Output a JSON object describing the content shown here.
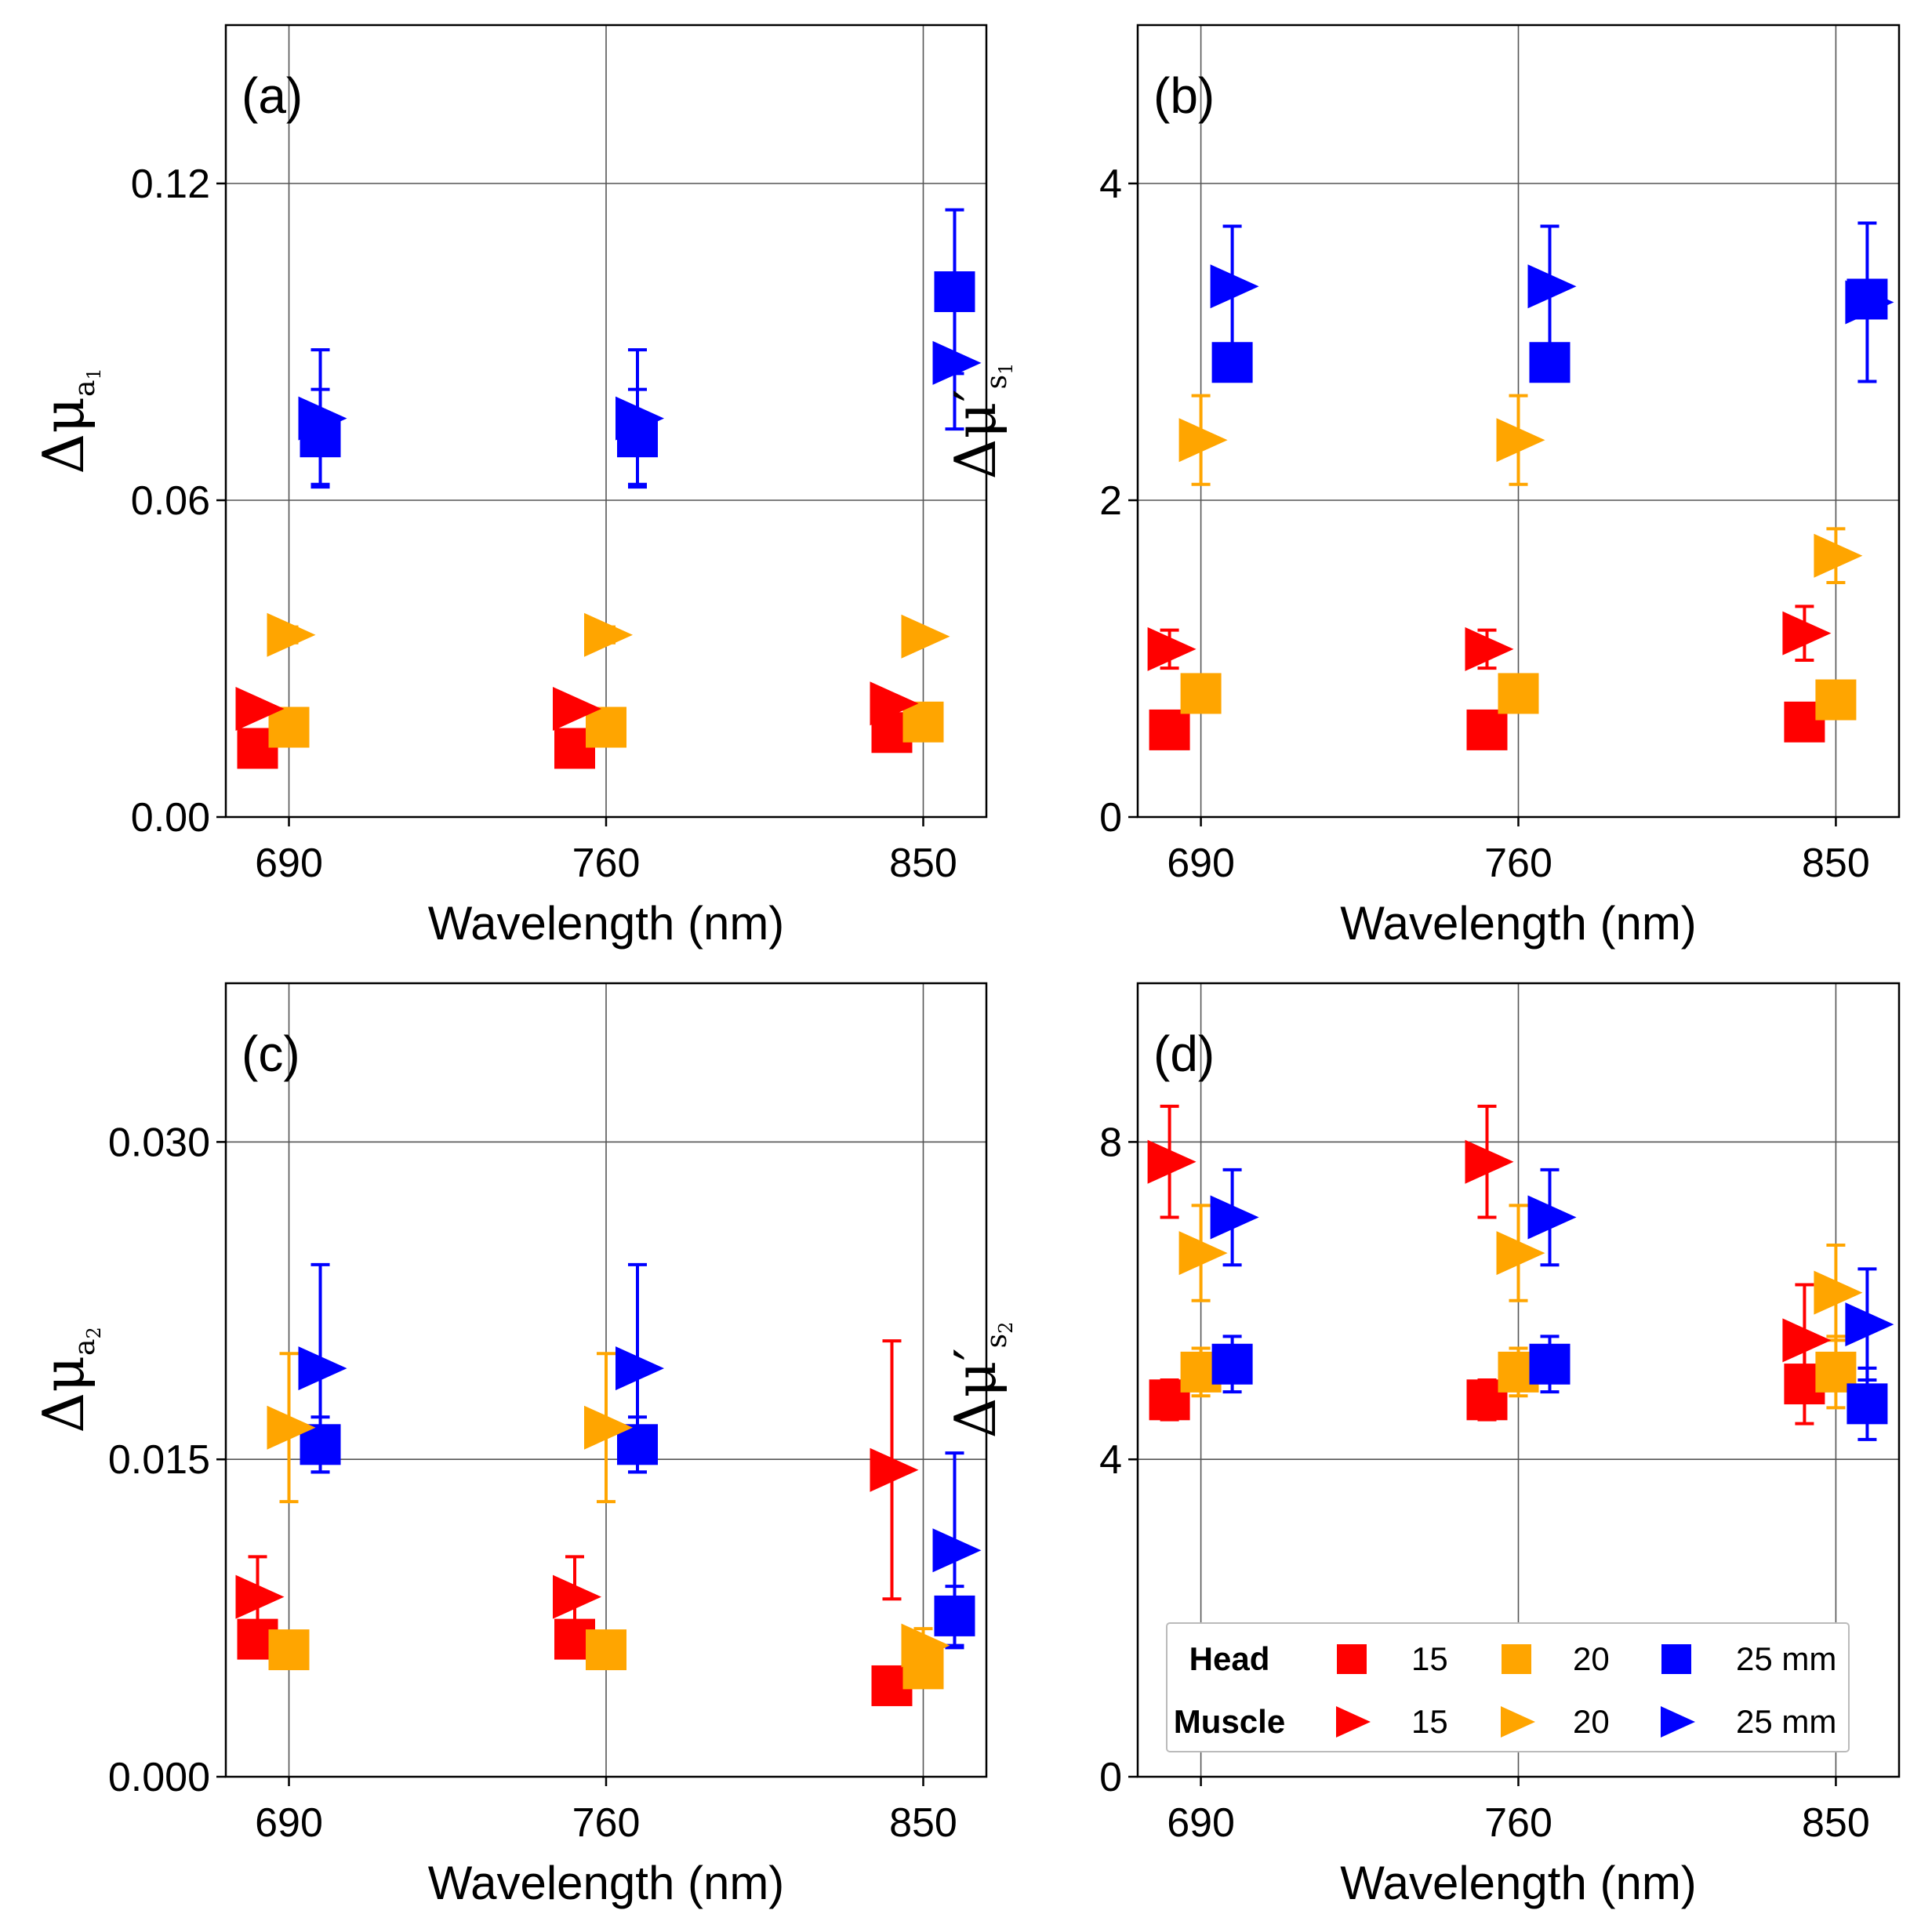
{
  "colors": {
    "15": "#ff0000",
    "20": "#ffa500",
    "25": "#0000ff"
  },
  "legend": {
    "rows": [
      {
        "label": "Head",
        "marker": "square"
      },
      {
        "label": "Muscle",
        "marker": "triangle"
      }
    ],
    "items": [
      {
        "key": "15",
        "label": "15"
      },
      {
        "key": "20",
        "label": "20"
      },
      {
        "key": "25",
        "label": "25 mm"
      }
    ]
  },
  "chart_data": [
    {
      "id": "a",
      "type": "scatter",
      "panel_label": "(a)",
      "ylabel": {
        "main": "Δμ",
        "sub": "a",
        "subsub": "1"
      },
      "xlabel": "Wavelength (nm)",
      "categories": [
        "690",
        "760",
        "850"
      ],
      "yticks": [
        0.0,
        0.06,
        0.12
      ],
      "ytick_labels": [
        "0.00",
        "0.06",
        "0.12"
      ],
      "ylim": [
        0,
        0.15
      ],
      "grid": true,
      "series": [
        {
          "group": "Head",
          "marker": "square",
          "distance": "15",
          "values": [
            0.013,
            0.013,
            0.016
          ],
          "errors": [
            0.0,
            0.0,
            0.0
          ]
        },
        {
          "group": "Head",
          "marker": "square",
          "distance": "20",
          "values": [
            0.017,
            0.017,
            0.018
          ],
          "errors": [
            0.0,
            0.0,
            0.0
          ]
        },
        {
          "group": "Head",
          "marker": "square",
          "distance": "25",
          "values": [
            0.072,
            0.072,
            0.0995
          ],
          "errors": [
            0.009,
            0.009,
            0.0155
          ]
        },
        {
          "group": "Muscle",
          "marker": "triangle",
          "distance": "15",
          "values": [
            0.0205,
            0.0205,
            0.0215
          ],
          "errors": [
            0.0,
            0.0,
            0.0008
          ]
        },
        {
          "group": "Muscle",
          "marker": "triangle",
          "distance": "20",
          "values": [
            0.0345,
            0.0345,
            0.0342
          ],
          "errors": [
            0.0015,
            0.0015,
            0.0
          ]
        },
        {
          "group": "Muscle",
          "marker": "triangle",
          "distance": "25",
          "values": [
            0.0755,
            0.0755,
            0.086
          ],
          "errors": [
            0.013,
            0.013,
            0.0125
          ]
        }
      ]
    },
    {
      "id": "b",
      "type": "scatter",
      "panel_label": "(b)",
      "ylabel": {
        "main": "Δμ′",
        "sub": "s",
        "subsub": "1"
      },
      "xlabel": "Wavelength (nm)",
      "categories": [
        "690",
        "760",
        "850"
      ],
      "yticks": [
        0,
        2,
        4
      ],
      "ytick_labels": [
        "0",
        "2",
        "4"
      ],
      "ylim": [
        0,
        5
      ],
      "grid": true,
      "series": [
        {
          "group": "Head",
          "marker": "square",
          "distance": "15",
          "values": [
            0.55,
            0.55,
            0.6
          ],
          "errors": [
            0.0,
            0.0,
            0.0
          ]
        },
        {
          "group": "Head",
          "marker": "square",
          "distance": "20",
          "values": [
            0.78,
            0.78,
            0.74
          ],
          "errors": [
            0.08,
            0.08,
            0.0
          ]
        },
        {
          "group": "Head",
          "marker": "square",
          "distance": "25",
          "values": [
            2.87,
            2.87,
            3.27
          ],
          "errors": [
            0.0,
            0.0,
            0.0
          ]
        },
        {
          "group": "Muscle",
          "marker": "triangle",
          "distance": "15",
          "values": [
            1.06,
            1.06,
            1.16
          ],
          "errors": [
            0.12,
            0.12,
            0.17
          ]
        },
        {
          "group": "Muscle",
          "marker": "triangle",
          "distance": "20",
          "values": [
            2.38,
            2.38,
            1.65
          ],
          "errors": [
            0.28,
            0.28,
            0.17
          ]
        },
        {
          "group": "Muscle",
          "marker": "triangle",
          "distance": "25",
          "values": [
            3.35,
            3.35,
            3.25
          ],
          "errors": [
            0.38,
            0.38,
            0.5
          ]
        }
      ]
    },
    {
      "id": "c",
      "type": "scatter",
      "panel_label": "(c)",
      "ylabel": {
        "main": "Δμ",
        "sub": "a",
        "subsub": "2"
      },
      "xlabel": "Wavelength (nm)",
      "categories": [
        "690",
        "760",
        "850"
      ],
      "yticks": [
        0.0,
        0.015,
        0.03
      ],
      "ytick_labels": [
        "0.000",
        "0.015",
        "0.030"
      ],
      "ylim": [
        0,
        0.0375
      ],
      "grid": true,
      "series": [
        {
          "group": "Head",
          "marker": "square",
          "distance": "15",
          "values": [
            0.0065,
            0.0065,
            0.0043
          ],
          "errors": [
            0.0,
            0.0,
            0.0
          ]
        },
        {
          "group": "Head",
          "marker": "square",
          "distance": "20",
          "values": [
            0.006,
            0.006,
            0.0051
          ],
          "errors": [
            0.0,
            0.0,
            0.0
          ]
        },
        {
          "group": "Head",
          "marker": "square",
          "distance": "25",
          "values": [
            0.0157,
            0.0157,
            0.0076
          ],
          "errors": [
            0.0013,
            0.0013,
            0.0014
          ]
        },
        {
          "group": "Muscle",
          "marker": "triangle",
          "distance": "15",
          "values": [
            0.0085,
            0.0085,
            0.0145
          ],
          "errors": [
            0.0019,
            0.0019,
            0.0061
          ]
        },
        {
          "group": "Muscle",
          "marker": "triangle",
          "distance": "20",
          "values": [
            0.0165,
            0.0165,
            0.0062
          ],
          "errors": [
            0.0035,
            0.0035,
            0.0008
          ]
        },
        {
          "group": "Muscle",
          "marker": "triangle",
          "distance": "25",
          "values": [
            0.0193,
            0.0193,
            0.0107
          ],
          "errors": [
            0.0049,
            0.0049,
            0.0046
          ]
        }
      ]
    },
    {
      "id": "d",
      "type": "scatter",
      "panel_label": "(d)",
      "ylabel": {
        "main": "Δμ′",
        "sub": "s",
        "subsub": "2"
      },
      "xlabel": "Wavelength (nm)",
      "categories": [
        "690",
        "760",
        "850"
      ],
      "yticks": [
        0,
        4,
        8
      ],
      "ytick_labels": [
        "0",
        "4",
        "8"
      ],
      "ylim": [
        0,
        10
      ],
      "grid": true,
      "series": [
        {
          "group": "Head",
          "marker": "square",
          "distance": "15",
          "values": [
            4.75,
            4.75,
            4.95
          ],
          "errors": [
            0.25,
            0.25,
            0.5
          ]
        },
        {
          "group": "Head",
          "marker": "square",
          "distance": "20",
          "values": [
            5.1,
            5.1,
            5.1
          ],
          "errors": [
            0.3,
            0.3,
            0.45
          ]
        },
        {
          "group": "Head",
          "marker": "square",
          "distance": "25",
          "values": [
            5.2,
            5.2,
            4.7
          ],
          "errors": [
            0.35,
            0.35,
            0.45
          ]
        },
        {
          "group": "Muscle",
          "marker": "triangle",
          "distance": "15",
          "values": [
            7.75,
            7.75,
            5.5
          ],
          "errors": [
            0.7,
            0.7,
            0.7
          ]
        },
        {
          "group": "Muscle",
          "marker": "triangle",
          "distance": "20",
          "values": [
            6.6,
            6.6,
            6.1
          ],
          "errors": [
            0.6,
            0.6,
            0.6
          ]
        },
        {
          "group": "Muscle",
          "marker": "triangle",
          "distance": "25",
          "values": [
            7.05,
            7.05,
            5.7
          ],
          "errors": [
            0.6,
            0.6,
            0.7
          ]
        }
      ]
    }
  ]
}
